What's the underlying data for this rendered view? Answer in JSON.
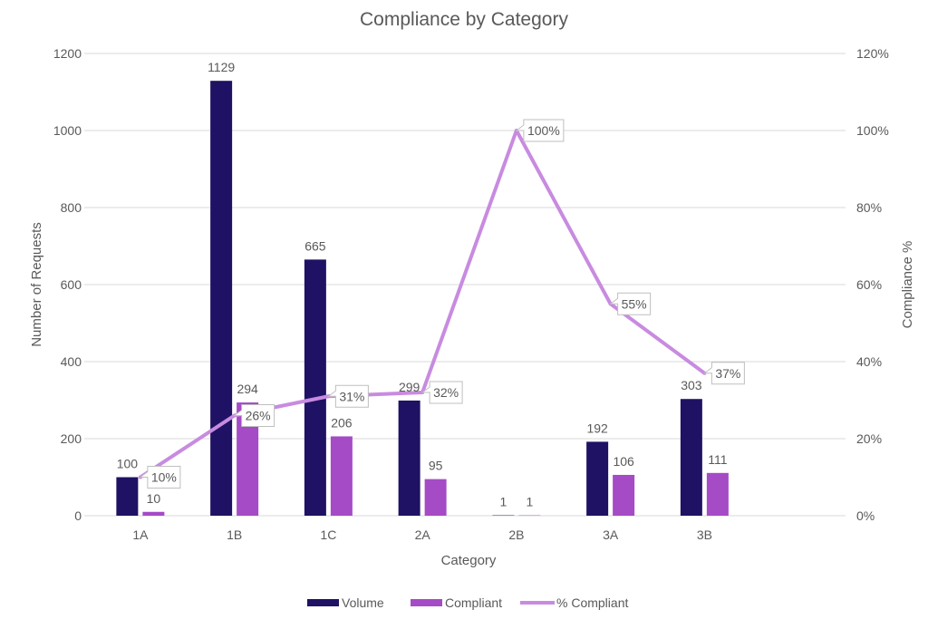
{
  "chart_data": {
    "type": "bar+line",
    "title": "Compliance by Category",
    "xlabel": "Category",
    "ylabel": "Number of Requests",
    "y2label": "Compliance %",
    "categories": [
      "1A",
      "1B",
      "1C",
      "2A",
      "2B",
      "3A",
      "3B"
    ],
    "ylim": [
      0,
      1200
    ],
    "yticks": [
      "0",
      "200",
      "400",
      "600",
      "800",
      "1000",
      "1200"
    ],
    "y2lim": [
      0,
      1.2
    ],
    "y2ticks": [
      "0%",
      "20%",
      "40%",
      "60%",
      "80%",
      "100%",
      "120%"
    ],
    "grid": true,
    "legend_position": "bottom",
    "series": [
      {
        "name": "Volume",
        "type": "bar",
        "axis": "left",
        "color": "#1f1264",
        "values": [
          100,
          1129,
          665,
          299,
          1,
          192,
          303
        ],
        "labels": [
          "100",
          "1129",
          "665",
          "299",
          "1",
          "192",
          "303"
        ]
      },
      {
        "name": "Compliant",
        "type": "bar",
        "axis": "left",
        "color": "#a54bc6",
        "values": [
          10,
          294,
          206,
          95,
          1,
          106,
          111
        ],
        "labels": [
          "10",
          "294",
          "206",
          "95",
          "1",
          "106",
          "111"
        ]
      },
      {
        "name": "% Compliant",
        "type": "line",
        "axis": "right",
        "color": "#c88be0",
        "values": [
          0.1,
          0.26,
          0.31,
          0.32,
          1.0,
          0.55,
          0.37
        ],
        "labels": [
          "10%",
          "26%",
          "31%",
          "32%",
          "100%",
          "55%",
          "37%"
        ]
      }
    ]
  }
}
